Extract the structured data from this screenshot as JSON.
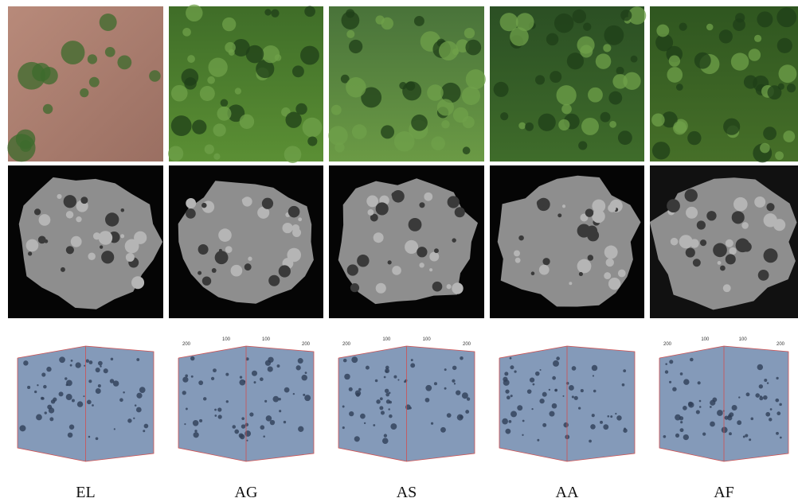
{
  "columns": [
    {
      "label": "EL"
    },
    {
      "label": "AG",
      "axis_labels": [
        "200",
        "100",
        "100",
        "200"
      ]
    },
    {
      "label": "AS",
      "axis_labels": [
        "200",
        "100",
        "100",
        "200"
      ]
    },
    {
      "label": "AA"
    },
    {
      "label": "AF",
      "axis_labels": [
        "200",
        "100",
        "100",
        "200"
      ]
    }
  ]
}
